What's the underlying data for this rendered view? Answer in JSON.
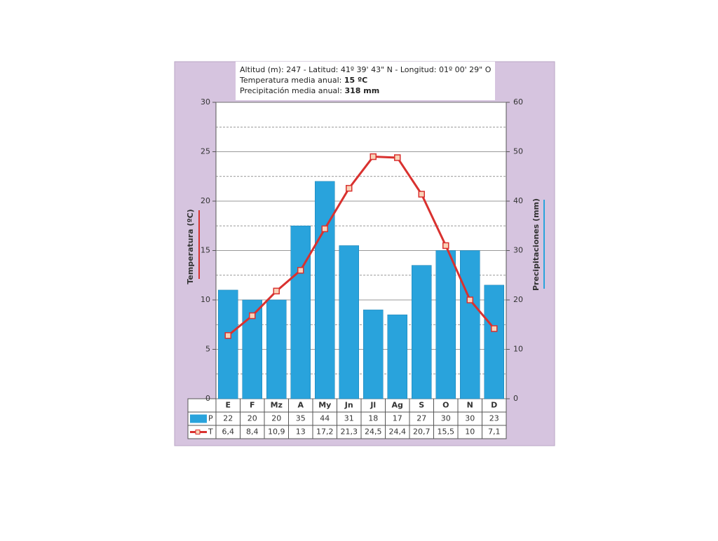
{
  "chart_data": {
    "type": "bar",
    "info": {
      "location": "Altitud (m): 247 - Latitud: 41º 39' 43\" N - Longitud: 01º 00' 29\" O",
      "temp_label": "Temperatura media anual:",
      "temp_value": "15 ºC",
      "precip_label": "Precipitación media anual:",
      "precip_value": "318 mm"
    },
    "ylabel": "Temperatura (ºC)",
    "y2label": "Precipitaciones (mm)",
    "categories": [
      "E",
      "F",
      "Mz",
      "A",
      "My",
      "Jn",
      "Jl",
      "Ag",
      "S",
      "O",
      "N",
      "D"
    ],
    "series": [
      {
        "name": "P",
        "type": "bar",
        "axis": "y2",
        "color": "#29a3dc",
        "values": [
          22,
          20,
          20,
          35,
          44,
          31,
          18,
          17,
          27,
          30,
          30,
          23
        ]
      },
      {
        "name": "T",
        "type": "line",
        "axis": "y",
        "color": "#d9312f",
        "values": [
          6.4,
          8.4,
          10.9,
          13,
          17.2,
          21.3,
          24.5,
          24.4,
          20.7,
          15.5,
          10,
          7.1
        ],
        "value_labels": [
          "6,4",
          "8,4",
          "10,9",
          "13",
          "17,2",
          "21,3",
          "24,5",
          "24,4",
          "20,7",
          "15,5",
          "10",
          "7,1"
        ]
      }
    ],
    "ylim": [
      0,
      30
    ],
    "yticks": [
      0,
      5,
      10,
      15,
      20,
      25,
      30
    ],
    "minor_yticks": [
      2.5,
      7.5,
      12.5,
      17.5,
      22.5,
      27.5
    ],
    "y2lim": [
      0,
      60
    ],
    "y2ticks": [
      0,
      10,
      20,
      30,
      40,
      50,
      60
    ],
    "grid": true
  }
}
